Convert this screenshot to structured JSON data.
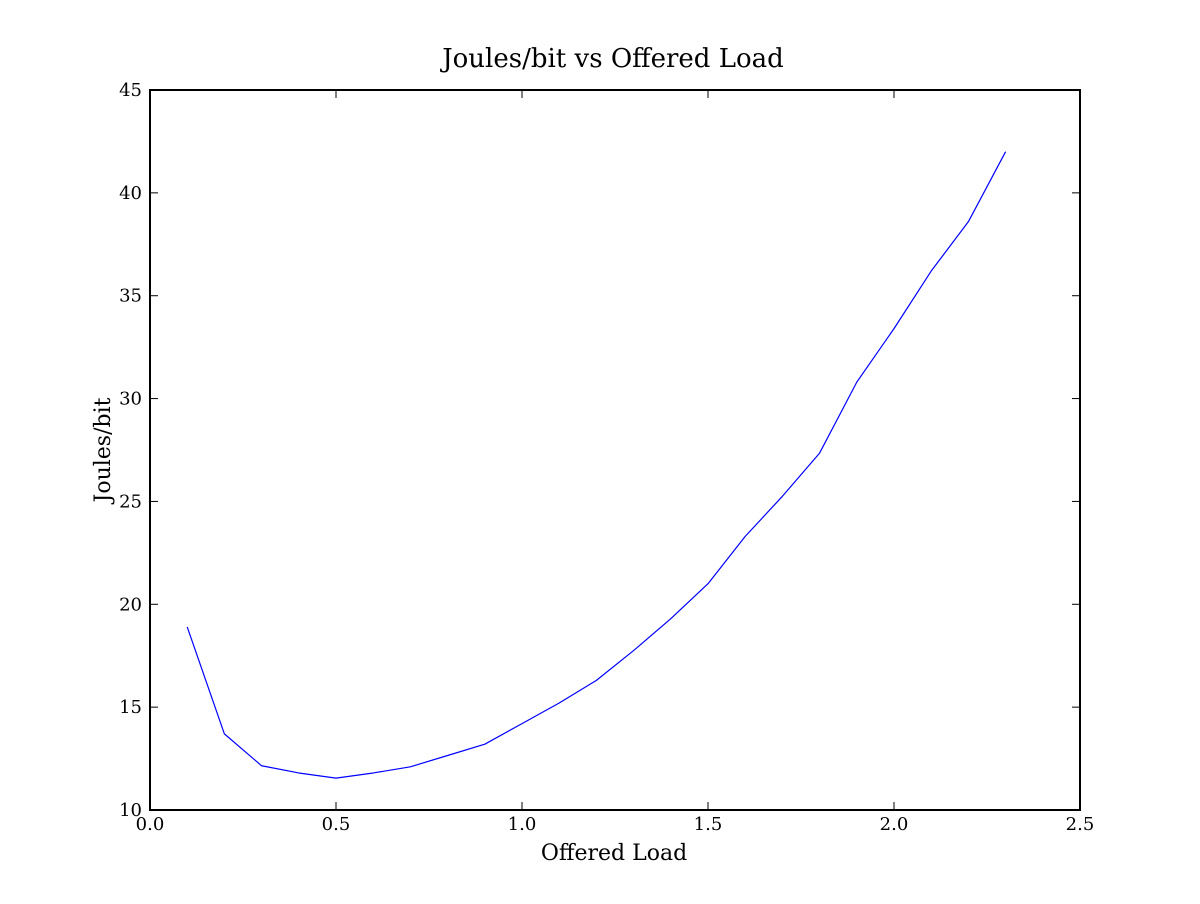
{
  "chart_data": {
    "type": "line",
    "title": "Joules/bit vs Offered Load",
    "xlabel": "Offered Load",
    "ylabel": "Joules/bit",
    "xlim": [
      0.0,
      2.5
    ],
    "ylim": [
      10,
      45
    ],
    "xticks": [
      0.0,
      0.5,
      1.0,
      1.5,
      2.0,
      2.5
    ],
    "xtick_labels": [
      "0.0",
      "0.5",
      "1.0",
      "1.5",
      "2.0",
      "2.5"
    ],
    "yticks": [
      10,
      15,
      20,
      25,
      30,
      35,
      40,
      45
    ],
    "ytick_labels": [
      "10",
      "15",
      "20",
      "25",
      "30",
      "35",
      "40",
      "45"
    ],
    "grid": false,
    "series": [
      {
        "color": "#0000ff",
        "x": [
          0.1,
          0.2,
          0.3,
          0.4,
          0.5,
          0.6,
          0.7,
          0.8,
          0.9,
          1.0,
          1.1,
          1.2,
          1.3,
          1.4,
          1.5,
          1.6,
          1.7,
          1.8,
          1.9,
          2.0,
          2.1,
          2.2,
          2.3
        ],
        "y": [
          18.9,
          13.7,
          12.15,
          11.8,
          11.55,
          11.8,
          12.1,
          12.65,
          13.2,
          14.2,
          15.2,
          16.3,
          17.75,
          19.3,
          21.0,
          23.3,
          25.25,
          27.35,
          30.8,
          33.4,
          36.2,
          38.6,
          42.0
        ]
      }
    ]
  }
}
